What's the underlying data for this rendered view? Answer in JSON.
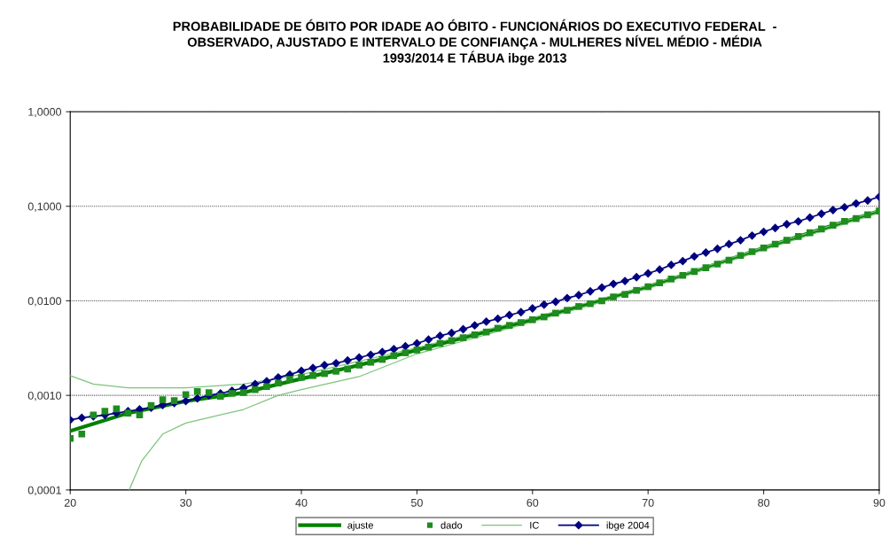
{
  "chart_data": {
    "type": "line",
    "title": "PROBABILIDADE DE ÓBITO POR IDADE AO ÓBITO - FUNCIONÁRIOS DO EXECUTIVO FEDERAL  -\nOBSERVADO, AJUSTADO E INTERVALO DE CONFIANÇA - MULHERES NÍVEL MÉDIO - MÉDIA\n1993/2014 E TÁBUA ibge 2013",
    "log": "y",
    "grid": "y",
    "legend": "bottom",
    "xlim": [
      20,
      90
    ],
    "xticks": [
      20,
      30,
      40,
      50,
      60,
      70,
      80,
      90
    ],
    "ylim": [
      0.0001,
      1
    ],
    "yticks": [
      {
        "value": 0.0001,
        "label": "0,0001"
      },
      {
        "value": 0.001,
        "label": "0,0010"
      },
      {
        "value": 0.01,
        "label": "0,0100"
      },
      {
        "value": 0.1,
        "label": "0,1000"
      },
      {
        "value": 1,
        "label": "1,0000"
      }
    ],
    "series": [
      {
        "name": "ajuste",
        "type": "line",
        "color": "#008000",
        "marker": "none",
        "line_style": "solid",
        "x": [
          20,
          22,
          25,
          30,
          35,
          40,
          45,
          50,
          55,
          60,
          65,
          70,
          75,
          80,
          85,
          90
        ],
        "values": [
          0.00042,
          0.0005,
          0.00065,
          0.00087,
          0.00107,
          0.0015,
          0.00209,
          0.00302,
          0.00437,
          0.00631,
          0.00933,
          0.0141,
          0.0224,
          0.0363,
          0.0575,
          0.0891
        ]
      },
      {
        "name": "dado",
        "type": "scatter",
        "color": "#1e8c1e",
        "marker": "square",
        "x": [
          20,
          21,
          22,
          23,
          24,
          25,
          26,
          27,
          28,
          29,
          30,
          31,
          32,
          33,
          34,
          35,
          36,
          37,
          38,
          39,
          40,
          41,
          42,
          43,
          44,
          45,
          46,
          47,
          48,
          49,
          50,
          51,
          52,
          53,
          54,
          55,
          56,
          57,
          58,
          59,
          60,
          61,
          62,
          63,
          64,
          65,
          66,
          67,
          68,
          69,
          70,
          71,
          72,
          73,
          74,
          75,
          76,
          77,
          78,
          79,
          80,
          81,
          82,
          83,
          84,
          85,
          86,
          87,
          88,
          89,
          90
        ],
        "values": [
          0.00035,
          0.00039,
          0.00062,
          0.00068,
          0.00072,
          0.00065,
          0.00062,
          0.00078,
          0.0009,
          0.00088,
          0.00102,
          0.0011,
          0.00107,
          0.00098,
          0.00105,
          0.00107,
          0.00115,
          0.00124,
          0.00135,
          0.00148,
          0.00155,
          0.00162,
          0.0017,
          0.0018,
          0.0019,
          0.00209,
          0.00224,
          0.0024,
          0.00263,
          0.00282,
          0.00302,
          0.00324,
          0.00355,
          0.0038,
          0.00407,
          0.00437,
          0.00468,
          0.00513,
          0.0055,
          0.00589,
          0.00631,
          0.00676,
          0.00741,
          0.00794,
          0.00871,
          0.00933,
          0.01,
          0.011,
          0.0117,
          0.0129,
          0.0141,
          0.0155,
          0.017,
          0.0186,
          0.0204,
          0.0224,
          0.0245,
          0.0269,
          0.0302,
          0.0331,
          0.0363,
          0.0398,
          0.0437,
          0.0479,
          0.0525,
          0.0575,
          0.0631,
          0.0692,
          0.0741,
          0.0813,
          0.0891
        ]
      },
      {
        "name": "IC",
        "type": "line",
        "color": "#7cc47c",
        "marker": "none",
        "line_style": "solid",
        "x": [
          20,
          22,
          25,
          30,
          35,
          40,
          45,
          50,
          60,
          70,
          80,
          90
        ],
        "values": [
          0.00162,
          0.00132,
          0.0012,
          0.0012,
          0.00132,
          0.00166,
          0.0023,
          0.0032,
          0.0066,
          0.0145,
          0.037,
          0.091
        ]
      },
      {
        "type": "line",
        "color": "#7cc47c",
        "marker": "none",
        "line_style": "solid",
        "x": [
          25.1,
          26.2,
          28,
          30,
          35,
          38,
          40,
          45,
          50,
          60,
          70,
          80,
          90
        ],
        "values": [
          0.0001,
          0.000204,
          0.00039,
          0.00051,
          0.00071,
          0.001,
          0.00115,
          0.00158,
          0.00275,
          0.006,
          0.0135,
          0.0347,
          0.085
        ]
      },
      {
        "name": "ibge 2004",
        "type": "line",
        "color": "#000080",
        "marker": "diamond",
        "line_style": "solid",
        "x": [
          20,
          21,
          22,
          23,
          24,
          25,
          26,
          27,
          28,
          29,
          30,
          31,
          32,
          33,
          34,
          35,
          36,
          37,
          38,
          39,
          40,
          41,
          42,
          43,
          44,
          45,
          46,
          47,
          48,
          49,
          50,
          51,
          52,
          53,
          54,
          55,
          56,
          57,
          58,
          59,
          60,
          61,
          62,
          63,
          64,
          65,
          66,
          67,
          68,
          69,
          70,
          71,
          72,
          73,
          74,
          75,
          76,
          77,
          78,
          79,
          80,
          81,
          82,
          83,
          84,
          85,
          86,
          87,
          88,
          89,
          90
        ],
        "values": [
          0.00055,
          0.00058,
          0.0006,
          0.00062,
          0.00065,
          0.00068,
          0.00071,
          0.00074,
          0.00079,
          0.00083,
          0.00087,
          0.00093,
          0.001,
          0.00105,
          0.00112,
          0.0012,
          0.00132,
          0.00141,
          0.00155,
          0.00166,
          0.00182,
          0.00195,
          0.00209,
          0.00219,
          0.00234,
          0.00251,
          0.00269,
          0.00288,
          0.00309,
          0.00331,
          0.00355,
          0.00389,
          0.00427,
          0.00457,
          0.00501,
          0.0055,
          0.00603,
          0.00646,
          0.00708,
          0.00759,
          0.00832,
          0.00912,
          0.00977,
          0.0107,
          0.0115,
          0.0126,
          0.0138,
          0.0151,
          0.0162,
          0.0178,
          0.0195,
          0.0214,
          0.024,
          0.0263,
          0.0295,
          0.0324,
          0.0355,
          0.0398,
          0.0437,
          0.049,
          0.0537,
          0.0589,
          0.0646,
          0.0692,
          0.0759,
          0.0832,
          0.0912,
          0.0977,
          0.107,
          0.115,
          0.126
        ]
      }
    ]
  }
}
